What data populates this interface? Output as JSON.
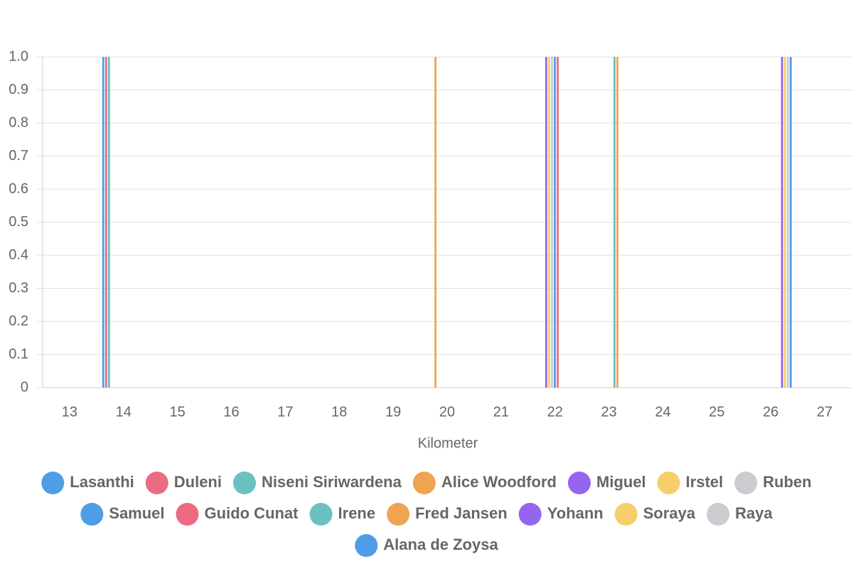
{
  "chart_data": {
    "type": "bar",
    "x_label": "Kilometer",
    "categories": [
      "13",
      "14",
      "15",
      "16",
      "17",
      "18",
      "19",
      "20",
      "21",
      "22",
      "23",
      "24",
      "25",
      "26",
      "27"
    ],
    "series": [
      {
        "name": "Lasanthi",
        "color": "#4f9de6",
        "values": [
          0,
          1,
          0,
          0,
          0,
          0,
          0,
          0,
          0,
          0,
          0,
          0,
          0,
          0,
          0
        ]
      },
      {
        "name": "Duleni",
        "color": "#ec6b83",
        "values": [
          0,
          1,
          0,
          0,
          0,
          0,
          0,
          0,
          0,
          0,
          0,
          0,
          0,
          0,
          0
        ]
      },
      {
        "name": "Niseni Siriwardena",
        "color": "#6cc0c0",
        "values": [
          0,
          1,
          0,
          0,
          0,
          0,
          0,
          0,
          0,
          0,
          0,
          0,
          0,
          0,
          0
        ]
      },
      {
        "name": "Alice Woodford",
        "color": "#f0a452",
        "values": [
          0,
          0,
          0,
          0,
          0,
          0,
          0,
          1,
          0,
          0,
          0,
          0,
          0,
          0,
          0
        ]
      },
      {
        "name": "Miguel",
        "color": "#9466f0",
        "values": [
          0,
          0,
          0,
          0,
          0,
          0,
          0,
          0,
          0,
          1,
          0,
          0,
          0,
          0,
          0
        ]
      },
      {
        "name": "Irstel",
        "color": "#f6cf6c",
        "values": [
          0,
          0,
          0,
          0,
          0,
          0,
          0,
          0,
          0,
          1,
          0,
          0,
          0,
          0,
          0
        ]
      },
      {
        "name": "Ruben",
        "color": "#cbccd0",
        "values": [
          0,
          0,
          0,
          0,
          0,
          0,
          0,
          0,
          0,
          1,
          0,
          0,
          0,
          0,
          0
        ]
      },
      {
        "name": "Samuel",
        "color": "#4f9de6",
        "values": [
          0,
          0,
          0,
          0,
          0,
          0,
          0,
          0,
          0,
          1,
          0,
          0,
          0,
          0,
          0
        ]
      },
      {
        "name": "Guido Cunat",
        "color": "#ec6b83",
        "values": [
          0,
          0,
          0,
          0,
          0,
          0,
          0,
          0,
          0,
          1,
          0,
          0,
          0,
          0,
          0
        ]
      },
      {
        "name": "Irene",
        "color": "#6cc0c0",
        "values": [
          0,
          0,
          0,
          0,
          0,
          0,
          0,
          0,
          0,
          0,
          1,
          0,
          0,
          0,
          0
        ]
      },
      {
        "name": "Fred Jansen",
        "color": "#f0a452",
        "values": [
          0,
          0,
          0,
          0,
          0,
          0,
          0,
          0,
          0,
          0,
          1,
          0,
          0,
          0,
          0
        ]
      },
      {
        "name": "Yohann",
        "color": "#9466f0",
        "values": [
          0,
          0,
          0,
          0,
          0,
          0,
          0,
          0,
          0,
          0,
          0,
          0,
          0,
          1,
          0
        ]
      },
      {
        "name": "Soraya",
        "color": "#f6cf6c",
        "values": [
          0,
          0,
          0,
          0,
          0,
          0,
          0,
          0,
          0,
          0,
          0,
          0,
          0,
          1,
          0
        ]
      },
      {
        "name": "Raya",
        "color": "#cbccd0",
        "values": [
          0,
          0,
          0,
          0,
          0,
          0,
          0,
          0,
          0,
          0,
          0,
          0,
          0,
          1,
          0
        ]
      },
      {
        "name": "Alana de Zoysa",
        "color": "#4f9de6",
        "values": [
          0,
          0,
          0,
          0,
          0,
          0,
          0,
          0,
          0,
          0,
          0,
          0,
          0,
          1,
          0
        ]
      }
    ],
    "ylim": [
      0,
      1
    ],
    "yticks": [
      0,
      0.1,
      0.2,
      0.3,
      0.4,
      0.5,
      0.6,
      0.7,
      0.8,
      0.9,
      {
        "value": 1,
        "label": "1.0"
      }
    ],
    "grid": true
  }
}
